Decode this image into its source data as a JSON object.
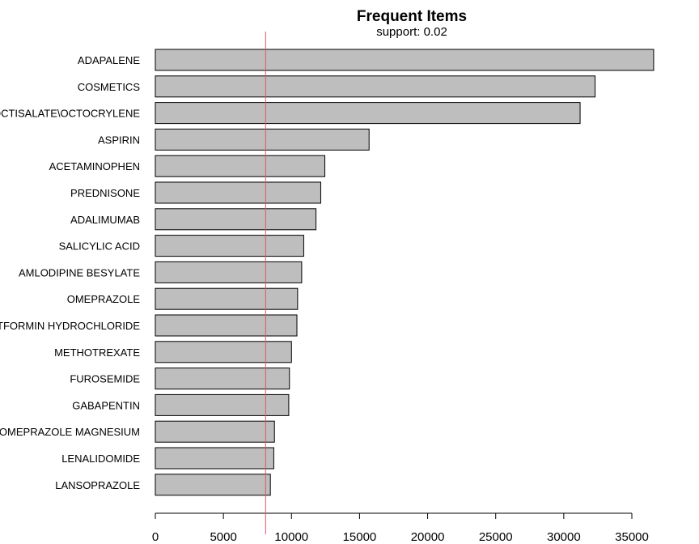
{
  "chart_data": {
    "type": "bar",
    "orientation": "horizontal",
    "title": "Frequent Items",
    "subtitle": "support: 0.02",
    "xlabel": "",
    "ylabel": "",
    "categories": [
      "ADAPALENE",
      "COSMETICS",
      "OCTISALATE\\OCTOCRYLENE",
      "ASPIRIN",
      "ACETAMINOPHEN",
      "PREDNISONE",
      "ADALIMUMAB",
      "SALICYLIC ACID",
      "AMLODIPINE BESYLATE",
      "OMEPRAZOLE",
      "METFORMIN HYDROCHLORIDE",
      "METHOTREXATE",
      "FUROSEMIDE",
      "GABAPENTIN",
      "ESOMEPRAZOLE MAGNESIUM",
      "LENALIDOMIDE",
      "LANSOPRAZOLE"
    ],
    "values": [
      36600,
      32300,
      31200,
      15700,
      12450,
      12150,
      11800,
      10900,
      10750,
      10450,
      10400,
      10000,
      9850,
      9800,
      8750,
      8700,
      8450
    ],
    "xlim": [
      0,
      35000
    ],
    "xticks": [
      0,
      5000,
      10000,
      15000,
      20000,
      25000,
      30000,
      35000
    ],
    "xtick_labels": [
      "0",
      "5000",
      "10000",
      "15000",
      "20000",
      "25000",
      "30000",
      "35000"
    ],
    "threshold": 8100,
    "grid": false,
    "colors": {
      "bar_fill": "#bebebe",
      "bar_stroke": "#000000",
      "threshold_line": "#df536b",
      "axis": "#000000"
    }
  }
}
